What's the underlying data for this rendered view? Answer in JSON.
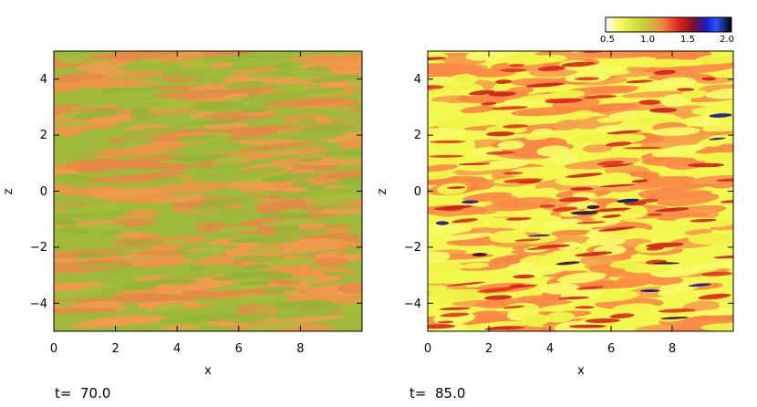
{
  "chart_data": [
    {
      "type": "heatmap",
      "title": "",
      "xlabel": "x",
      "ylabel": "z",
      "xlim": [
        0,
        10
      ],
      "ylim": [
        -5,
        5
      ],
      "xticks": [
        "0",
        "2",
        "4",
        "6",
        "8"
      ],
      "yticks": [
        "4",
        "2",
        "0",
        "−2",
        "−4"
      ],
      "annotation": "t=  70.0",
      "value_range": [
        0.85,
        1.15
      ],
      "colors": [
        "#8db534",
        "#aac23c",
        "#e8924a",
        "#f29a4f"
      ]
    },
    {
      "type": "heatmap",
      "title": "",
      "xlabel": "x",
      "ylabel": "z",
      "xlim": [
        0,
        10
      ],
      "ylim": [
        -5,
        5
      ],
      "xticks": [
        "0",
        "2",
        "4",
        "6",
        "8"
      ],
      "yticks": [
        "4",
        "2",
        "0",
        "−2",
        "−4"
      ],
      "annotation": "t=  85.0",
      "value_range": [
        0.5,
        2.0
      ],
      "colors": [
        "#f3f84e",
        "#fa8446",
        "#d81e1e",
        "#141478"
      ]
    }
  ],
  "colorbar": {
    "tick_labels": [
      "0.5",
      "1.0",
      "1.5",
      "2.0"
    ],
    "range": [
      0.5,
      2.0
    ],
    "stops": [
      "#ffffff",
      "#f4fa54",
      "#c8d23a",
      "#f0893e",
      "#e0241c",
      "#7a0e2a",
      "#1a1ad0",
      "#2a56ff",
      "#000000"
    ]
  }
}
